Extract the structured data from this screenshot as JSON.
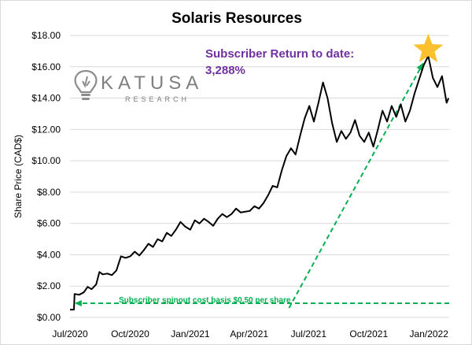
{
  "chart_data": {
    "type": "line",
    "title": "Solaris Resources",
    "xlabel": "",
    "ylabel": "Share Price (CAD$)",
    "y_ticks": [
      "$0.00",
      "$2.00",
      "$4.00",
      "$6.00",
      "$8.00",
      "$10.00",
      "$12.00",
      "$14.00",
      "$16.00",
      "$18.00"
    ],
    "ylim": [
      0,
      18
    ],
    "x_ticks": [
      "Jul/2020",
      "Oct/2020",
      "Jan/2021",
      "Apr/2021",
      "Jul/2021",
      "Oct/2021",
      "Jan/2022"
    ],
    "x_tick_dates": [
      "2020-07-01",
      "2020-10-01",
      "2021-01-01",
      "2021-04-01",
      "2021-07-01",
      "2021-10-01",
      "2022-01-01"
    ],
    "xlim": [
      "2020-07-01",
      "2022-02-01"
    ],
    "grid": "horizontal",
    "series": [
      {
        "color": "#000000",
        "points": [
          [
            "2020-07-01",
            0.5
          ],
          [
            "2020-07-07",
            0.5
          ],
          [
            "2020-07-08",
            1.5
          ],
          [
            "2020-07-15",
            1.45
          ],
          [
            "2020-07-22",
            1.6
          ],
          [
            "2020-07-28",
            1.95
          ],
          [
            "2020-08-03",
            1.8
          ],
          [
            "2020-08-10",
            2.1
          ],
          [
            "2020-08-15",
            2.9
          ],
          [
            "2020-08-20",
            2.75
          ],
          [
            "2020-08-27",
            2.8
          ],
          [
            "2020-09-03",
            2.7
          ],
          [
            "2020-09-10",
            3.0
          ],
          [
            "2020-09-17",
            3.9
          ],
          [
            "2020-09-24",
            3.8
          ],
          [
            "2020-10-01",
            3.9
          ],
          [
            "2020-10-08",
            4.2
          ],
          [
            "2020-10-15",
            3.95
          ],
          [
            "2020-10-22",
            4.3
          ],
          [
            "2020-10-29",
            4.7
          ],
          [
            "2020-11-05",
            4.5
          ],
          [
            "2020-11-12",
            5.0
          ],
          [
            "2020-11-19",
            4.85
          ],
          [
            "2020-11-26",
            5.4
          ],
          [
            "2020-12-03",
            5.2
          ],
          [
            "2020-12-10",
            5.6
          ],
          [
            "2020-12-17",
            6.1
          ],
          [
            "2020-12-24",
            5.8
          ],
          [
            "2021-01-01",
            5.6
          ],
          [
            "2021-01-08",
            6.2
          ],
          [
            "2021-01-15",
            6.0
          ],
          [
            "2021-01-22",
            6.3
          ],
          [
            "2021-01-29",
            6.1
          ],
          [
            "2021-02-05",
            5.85
          ],
          [
            "2021-02-12",
            6.3
          ],
          [
            "2021-02-19",
            6.6
          ],
          [
            "2021-02-26",
            6.4
          ],
          [
            "2021-03-05",
            6.6
          ],
          [
            "2021-03-12",
            6.95
          ],
          [
            "2021-03-19",
            6.7
          ],
          [
            "2021-03-26",
            6.75
          ],
          [
            "2021-04-02",
            6.8
          ],
          [
            "2021-04-09",
            7.1
          ],
          [
            "2021-04-16",
            6.95
          ],
          [
            "2021-04-23",
            7.3
          ],
          [
            "2021-04-30",
            7.8
          ],
          [
            "2021-05-07",
            8.4
          ],
          [
            "2021-05-14",
            8.3
          ],
          [
            "2021-05-21",
            9.4
          ],
          [
            "2021-05-28",
            10.3
          ],
          [
            "2021-06-04",
            10.8
          ],
          [
            "2021-06-11",
            10.4
          ],
          [
            "2021-06-18",
            11.6
          ],
          [
            "2021-06-25",
            12.7
          ],
          [
            "2021-07-02",
            13.5
          ],
          [
            "2021-07-09",
            12.5
          ],
          [
            "2021-07-16",
            13.7
          ],
          [
            "2021-07-23",
            15.0
          ],
          [
            "2021-07-30",
            14.0
          ],
          [
            "2021-08-06",
            12.4
          ],
          [
            "2021-08-13",
            11.2
          ],
          [
            "2021-08-20",
            11.9
          ],
          [
            "2021-08-27",
            11.4
          ],
          [
            "2021-09-03",
            11.8
          ],
          [
            "2021-09-10",
            12.6
          ],
          [
            "2021-09-17",
            11.6
          ],
          [
            "2021-09-24",
            11.2
          ],
          [
            "2021-10-01",
            11.8
          ],
          [
            "2021-10-08",
            10.9
          ],
          [
            "2021-10-15",
            12.0
          ],
          [
            "2021-10-22",
            13.2
          ],
          [
            "2021-10-29",
            12.5
          ],
          [
            "2021-11-05",
            13.5
          ],
          [
            "2021-11-12",
            12.8
          ],
          [
            "2021-11-19",
            13.6
          ],
          [
            "2021-11-26",
            12.5
          ],
          [
            "2021-12-03",
            13.2
          ],
          [
            "2021-12-10",
            14.3
          ],
          [
            "2021-12-17",
            15.2
          ],
          [
            "2021-12-24",
            16.1
          ],
          [
            "2021-12-31",
            16.7
          ],
          [
            "2022-01-07",
            15.3
          ],
          [
            "2022-01-14",
            14.7
          ],
          [
            "2022-01-21",
            15.4
          ],
          [
            "2022-01-28",
            13.7
          ],
          [
            "2022-01-31",
            14.0
          ]
        ]
      }
    ],
    "annotations": {
      "return_line1": "Subscriber Return to date:",
      "return_line2": "3,288%",
      "basis_text": "Subscriber spinout cost basis $0.50 per share",
      "basis_line": {
        "value": 0.5,
        "from": "2022-02-01",
        "to": "2020-07-08"
      },
      "return_line": {
        "from": [
          "2021-06-01",
          0.6
        ],
        "to": [
          "2021-12-31",
          16.7
        ]
      },
      "star_at": [
        "2021-12-31",
        16.7
      ],
      "star_color": "#fbc02d",
      "arrow_color": "#00b050",
      "return_text_color": "#7030a0"
    }
  },
  "logo": {
    "name": "KATUSA",
    "sub": "RESEARCH",
    "icon": "lightbulb-icon",
    "color": "#7f7f7f"
  }
}
